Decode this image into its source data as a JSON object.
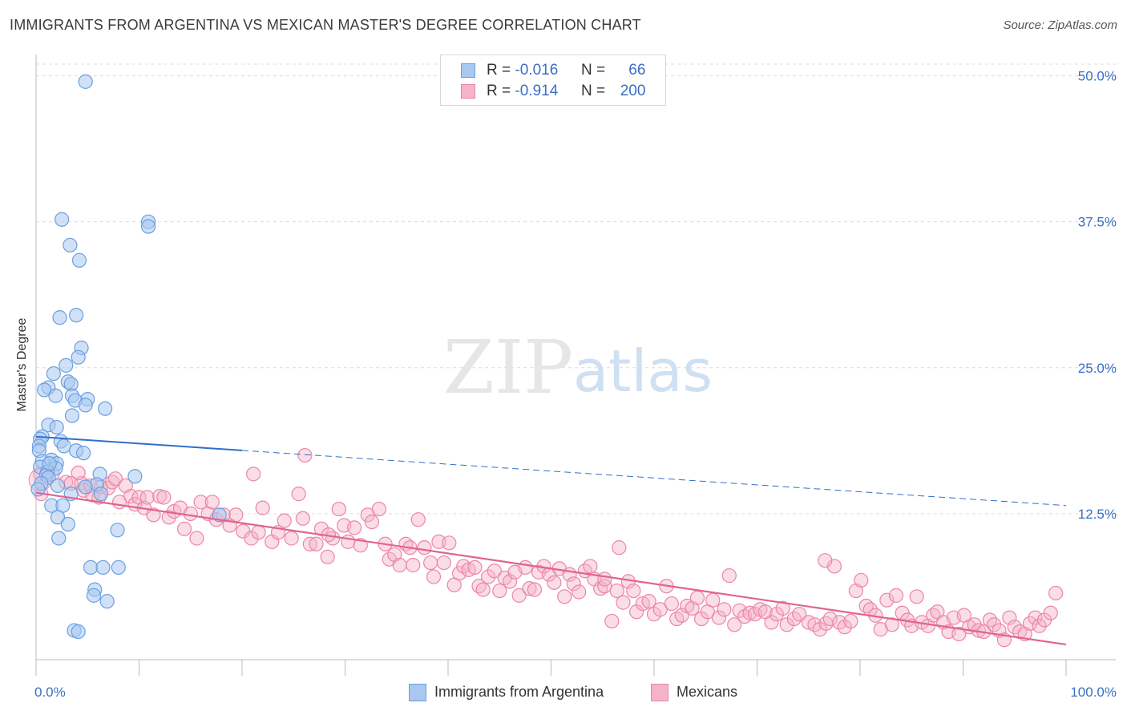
{
  "title": "IMMIGRANTS FROM ARGENTINA VS MEXICAN MASTER'S DEGREE CORRELATION CHART",
  "source": "Source: ZipAtlas.com",
  "watermark": {
    "zip": "ZIP",
    "atlas": "atlas"
  },
  "legend": {
    "row1": {
      "r_label": "R =",
      "r_value": "-0.016",
      "n_label": "N =",
      "n_value": "66"
    },
    "row2": {
      "r_label": "R =",
      "r_value": "-0.914",
      "n_label": "N =",
      "n_value": "200"
    }
  },
  "bottom_legend": {
    "series1": "Immigrants from Argentina",
    "series2": "Mexicans"
  },
  "colors": {
    "blue_fill": "#a9c8f0",
    "blue_stroke": "#6a9fe0",
    "blue_line": "#2f6fcc",
    "pink_fill": "#f5b3c8",
    "pink_stroke": "#ec85a8",
    "pink_line": "#e0648f",
    "tick_label": "#3a6fc4",
    "grid": "#dcdcdc"
  },
  "chart_data": {
    "type": "scatter",
    "title": "IMMIGRANTS FROM ARGENTINA VS MEXICAN MASTER'S DEGREE CORRELATION CHART",
    "xlabel": "",
    "ylabel": "Master's Degree",
    "xlim": [
      0,
      100
    ],
    "ylim": [
      0,
      51
    ],
    "x_tick_labels": [
      "0.0%",
      "100.0%"
    ],
    "y_ticks": [
      12.5,
      25.0,
      37.5,
      50.0
    ],
    "y_tick_labels": [
      "12.5%",
      "25.0%",
      "37.5%",
      "50.0%"
    ],
    "grid": true,
    "series": [
      {
        "name": "Immigrants from Argentina",
        "R": -0.016,
        "N": 66,
        "trend": {
          "x_solid": [
            0,
            20
          ],
          "x_dashed": [
            20,
            100
          ],
          "y_at_0": 19.1,
          "y_at_100": 13.2
        },
        "points": [
          [
            4.8,
            49.5
          ],
          [
            2.5,
            37.7
          ],
          [
            10.9,
            37.5
          ],
          [
            10.9,
            37.1
          ],
          [
            3.3,
            35.5
          ],
          [
            4.2,
            34.2
          ],
          [
            2.3,
            29.3
          ],
          [
            3.9,
            29.5
          ],
          [
            4.4,
            26.7
          ],
          [
            4.1,
            25.9
          ],
          [
            2.9,
            25.2
          ],
          [
            1.7,
            24.5
          ],
          [
            3.1,
            23.8
          ],
          [
            3.4,
            23.6
          ],
          [
            1.2,
            23.3
          ],
          [
            0.8,
            23.1
          ],
          [
            1.9,
            22.6
          ],
          [
            3.5,
            22.6
          ],
          [
            5.0,
            22.3
          ],
          [
            3.8,
            22.2
          ],
          [
            4.8,
            21.8
          ],
          [
            6.7,
            21.5
          ],
          [
            3.5,
            20.9
          ],
          [
            1.2,
            20.1
          ],
          [
            2.0,
            19.9
          ],
          [
            0.6,
            19.1
          ],
          [
            0.4,
            18.9
          ],
          [
            2.4,
            18.7
          ],
          [
            0.3,
            18.3
          ],
          [
            0.3,
            17.9
          ],
          [
            2.7,
            18.3
          ],
          [
            3.9,
            17.9
          ],
          [
            4.6,
            17.7
          ],
          [
            0.6,
            17.0
          ],
          [
            1.5,
            17.1
          ],
          [
            2.0,
            16.8
          ],
          [
            0.4,
            16.5
          ],
          [
            1.9,
            16.4
          ],
          [
            1.1,
            16.1
          ],
          [
            1.0,
            15.8
          ],
          [
            1.2,
            15.6
          ],
          [
            6.2,
            15.9
          ],
          [
            9.6,
            15.7
          ],
          [
            5.9,
            15.0
          ],
          [
            2.1,
            14.9
          ],
          [
            4.8,
            14.8
          ],
          [
            3.4,
            14.2
          ],
          [
            6.3,
            14.2
          ],
          [
            1.5,
            13.2
          ],
          [
            2.6,
            13.2
          ],
          [
            2.1,
            12.2
          ],
          [
            17.8,
            12.4
          ],
          [
            3.1,
            11.6
          ],
          [
            7.9,
            11.1
          ],
          [
            2.2,
            10.4
          ],
          [
            5.3,
            7.9
          ],
          [
            6.5,
            7.9
          ],
          [
            8.0,
            7.9
          ],
          [
            5.7,
            6.0
          ],
          [
            5.6,
            5.5
          ],
          [
            6.9,
            5.0
          ],
          [
            3.7,
            2.5
          ],
          [
            4.1,
            2.4
          ],
          [
            0.5,
            15.1
          ],
          [
            0.2,
            14.6
          ],
          [
            1.3,
            16.8
          ]
        ]
      },
      {
        "name": "Mexicans",
        "R": -0.914,
        "N": 200,
        "trend": {
          "x_solid": [
            0,
            100
          ],
          "y_at_0": 14.3,
          "y_at_100": 1.3
        },
        "points": [
          [
            0.4,
            15.9
          ],
          [
            0.5,
            14.2
          ],
          [
            1.6,
            15.9
          ],
          [
            2.9,
            15.2
          ],
          [
            3.4,
            15.1
          ],
          [
            4.4,
            15.1
          ],
          [
            4.6,
            14.5
          ],
          [
            5.3,
            14.9
          ],
          [
            5.5,
            14.1
          ],
          [
            6.1,
            13.9
          ],
          [
            6.3,
            14.8
          ],
          [
            7.0,
            14.7
          ],
          [
            7.4,
            15.2
          ],
          [
            7.7,
            15.5
          ],
          [
            8.1,
            13.5
          ],
          [
            8.7,
            14.9
          ],
          [
            9.2,
            14.0
          ],
          [
            9.6,
            13.3
          ],
          [
            10.0,
            13.9
          ],
          [
            10.5,
            13.0
          ],
          [
            10.8,
            13.9
          ],
          [
            11.4,
            12.4
          ],
          [
            12.0,
            14.0
          ],
          [
            12.4,
            13.9
          ],
          [
            12.9,
            12.2
          ],
          [
            13.4,
            12.7
          ],
          [
            14.0,
            13.0
          ],
          [
            14.4,
            11.2
          ],
          [
            15.0,
            12.5
          ],
          [
            15.6,
            10.4
          ],
          [
            16.0,
            13.5
          ],
          [
            16.7,
            12.5
          ],
          [
            17.1,
            13.5
          ],
          [
            17.5,
            12.0
          ],
          [
            18.2,
            12.4
          ],
          [
            18.8,
            11.5
          ],
          [
            19.4,
            12.4
          ],
          [
            20.1,
            11.0
          ],
          [
            20.9,
            10.4
          ],
          [
            21.6,
            10.9
          ],
          [
            22.0,
            13.0
          ],
          [
            22.9,
            10.1
          ],
          [
            23.5,
            10.9
          ],
          [
            24.1,
            11.9
          ],
          [
            24.8,
            10.4
          ],
          [
            25.5,
            14.2
          ],
          [
            25.9,
            12.1
          ],
          [
            26.6,
            9.9
          ],
          [
            27.2,
            9.9
          ],
          [
            27.7,
            11.2
          ],
          [
            28.3,
            8.8
          ],
          [
            28.8,
            10.4
          ],
          [
            29.4,
            12.9
          ],
          [
            29.9,
            11.5
          ],
          [
            30.3,
            10.1
          ],
          [
            30.9,
            11.3
          ],
          [
            31.5,
            9.8
          ],
          [
            32.2,
            12.4
          ],
          [
            32.6,
            11.8
          ],
          [
            33.3,
            12.9
          ],
          [
            33.9,
            9.9
          ],
          [
            34.3,
            8.6
          ],
          [
            34.8,
            9.0
          ],
          [
            35.3,
            8.1
          ],
          [
            35.9,
            9.9
          ],
          [
            36.6,
            8.1
          ],
          [
            37.1,
            12.0
          ],
          [
            37.7,
            9.6
          ],
          [
            38.3,
            8.3
          ],
          [
            38.6,
            7.1
          ],
          [
            39.1,
            10.1
          ],
          [
            39.6,
            8.3
          ],
          [
            40.1,
            10.0
          ],
          [
            40.6,
            6.4
          ],
          [
            41.1,
            7.4
          ],
          [
            41.5,
            8.0
          ],
          [
            42.0,
            7.7
          ],
          [
            42.6,
            7.9
          ],
          [
            43.0,
            6.3
          ],
          [
            43.4,
            6.0
          ],
          [
            43.9,
            7.1
          ],
          [
            44.5,
            7.6
          ],
          [
            45.0,
            5.9
          ],
          [
            45.5,
            7.0
          ],
          [
            46.0,
            6.7
          ],
          [
            46.5,
            7.5
          ],
          [
            46.9,
            5.5
          ],
          [
            47.5,
            7.9
          ],
          [
            47.9,
            6.1
          ],
          [
            48.4,
            6.0
          ],
          [
            48.8,
            7.5
          ],
          [
            49.3,
            8.0
          ],
          [
            49.8,
            7.3
          ],
          [
            50.3,
            6.6
          ],
          [
            50.8,
            7.8
          ],
          [
            51.3,
            5.4
          ],
          [
            51.8,
            7.3
          ],
          [
            52.2,
            6.5
          ],
          [
            52.7,
            5.8
          ],
          [
            53.3,
            7.6
          ],
          [
            53.8,
            8.0
          ],
          [
            54.2,
            6.9
          ],
          [
            54.8,
            6.1
          ],
          [
            55.2,
            6.3
          ],
          [
            55.9,
            3.3
          ],
          [
            56.4,
            5.9
          ],
          [
            57.0,
            4.9
          ],
          [
            57.5,
            6.7
          ],
          [
            58.0,
            5.9
          ],
          [
            58.3,
            4.1
          ],
          [
            58.9,
            4.8
          ],
          [
            59.5,
            5.0
          ],
          [
            60.0,
            3.9
          ],
          [
            60.6,
            4.3
          ],
          [
            61.2,
            6.3
          ],
          [
            61.7,
            4.8
          ],
          [
            62.2,
            3.5
          ],
          [
            62.7,
            3.8
          ],
          [
            63.2,
            4.6
          ],
          [
            63.7,
            4.4
          ],
          [
            64.2,
            5.3
          ],
          [
            64.6,
            3.5
          ],
          [
            65.2,
            4.1
          ],
          [
            65.7,
            5.1
          ],
          [
            66.3,
            3.6
          ],
          [
            66.8,
            4.3
          ],
          [
            67.3,
            7.2
          ],
          [
            67.8,
            3.0
          ],
          [
            68.3,
            4.2
          ],
          [
            68.8,
            3.7
          ],
          [
            69.3,
            4.0
          ],
          [
            69.8,
            3.9
          ],
          [
            70.3,
            4.3
          ],
          [
            70.8,
            4.1
          ],
          [
            71.4,
            3.2
          ],
          [
            71.9,
            3.9
          ],
          [
            72.5,
            4.4
          ],
          [
            72.9,
            3.0
          ],
          [
            73.6,
            3.5
          ],
          [
            74.1,
            3.9
          ],
          [
            75.0,
            3.2
          ],
          [
            75.6,
            3.0
          ],
          [
            76.1,
            2.6
          ],
          [
            76.7,
            3.1
          ],
          [
            77.1,
            3.5
          ],
          [
            77.5,
            8.0
          ],
          [
            78.0,
            3.2
          ],
          [
            78.5,
            2.8
          ],
          [
            79.1,
            3.3
          ],
          [
            79.6,
            5.9
          ],
          [
            80.1,
            6.8
          ],
          [
            80.6,
            4.6
          ],
          [
            81.0,
            4.3
          ],
          [
            81.5,
            3.8
          ],
          [
            82.0,
            2.6
          ],
          [
            82.6,
            5.1
          ],
          [
            83.1,
            3.0
          ],
          [
            83.5,
            5.5
          ],
          [
            84.1,
            4.0
          ],
          [
            84.6,
            3.4
          ],
          [
            85.0,
            2.9
          ],
          [
            85.5,
            5.4
          ],
          [
            86.0,
            3.2
          ],
          [
            86.6,
            2.9
          ],
          [
            87.1,
            3.8
          ],
          [
            87.5,
            4.1
          ],
          [
            88.1,
            3.2
          ],
          [
            88.6,
            2.4
          ],
          [
            89.1,
            3.6
          ],
          [
            89.6,
            2.2
          ],
          [
            90.1,
            3.8
          ],
          [
            90.6,
            2.8
          ],
          [
            91.1,
            3.0
          ],
          [
            91.5,
            2.5
          ],
          [
            92.0,
            2.4
          ],
          [
            92.6,
            3.4
          ],
          [
            93.0,
            3.0
          ],
          [
            93.5,
            2.5
          ],
          [
            94.0,
            1.7
          ],
          [
            94.5,
            3.6
          ],
          [
            95.0,
            2.8
          ],
          [
            95.5,
            2.4
          ],
          [
            96.0,
            2.2
          ],
          [
            96.5,
            3.1
          ],
          [
            97.0,
            3.6
          ],
          [
            97.4,
            2.9
          ],
          [
            97.9,
            3.4
          ],
          [
            98.5,
            4.0
          ],
          [
            99.0,
            5.7
          ],
          [
            4.1,
            16.0
          ],
          [
            21.1,
            15.9
          ],
          [
            26.1,
            17.5
          ],
          [
            56.6,
            9.6
          ],
          [
            76.6,
            8.5
          ],
          [
            55.2,
            6.9
          ],
          [
            28.4,
            10.7
          ],
          [
            36.3,
            9.6
          ]
        ]
      }
    ]
  }
}
